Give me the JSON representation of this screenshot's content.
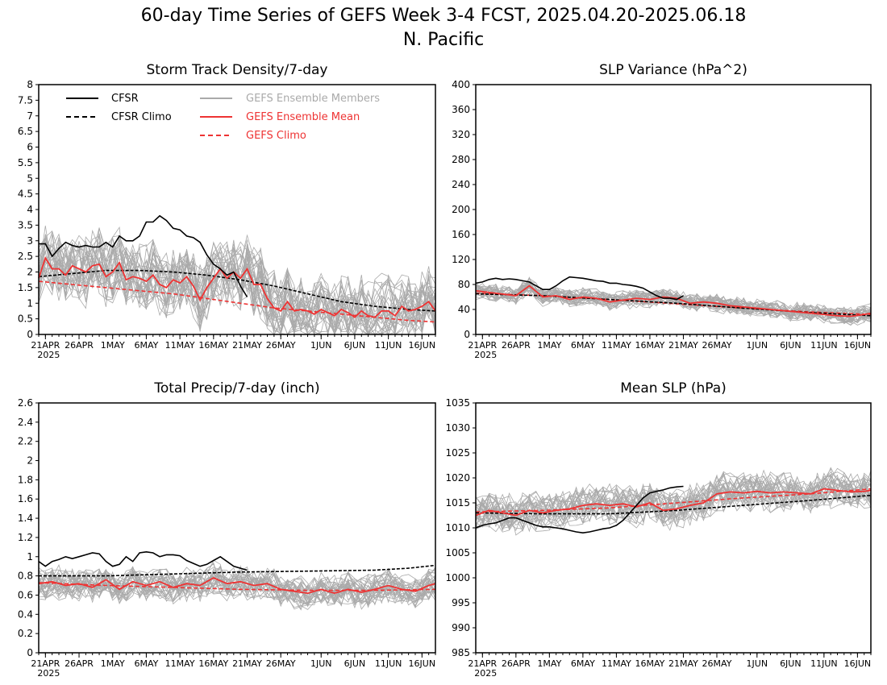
{
  "title": "60-day Time Series of GEFS Week 3-4 FCST, 2025.04.20-2025.06.18",
  "subtitle": "N. Pacific",
  "colors": {
    "cfsr": "#000000",
    "members": "#aaaaaa",
    "mean": "#ee3333",
    "gefs_climo": "#ee3333"
  },
  "legend": {
    "cfsr": "CFSR",
    "cfsr_climo": "CFSR Climo",
    "members": "GEFS Ensemble Members",
    "mean": "GEFS Ensemble Mean",
    "gefs_climo": "GEFS Climo"
  },
  "x_axis": {
    "ticks": [
      {
        "day": 1,
        "label": "21APR"
      },
      {
        "day": 6,
        "label": "26APR"
      },
      {
        "day": 11,
        "label": "1MAY"
      },
      {
        "day": 16,
        "label": "6MAY"
      },
      {
        "day": 21,
        "label": "11MAY"
      },
      {
        "day": 26,
        "label": "16MAY"
      },
      {
        "day": 31,
        "label": "21MAY"
      },
      {
        "day": 36,
        "label": "26MAY"
      },
      {
        "day": 42,
        "label": "1JUN"
      },
      {
        "day": 47,
        "label": "6JUN"
      },
      {
        "day": 52,
        "label": "11JUN"
      },
      {
        "day": 57,
        "label": "16JUN"
      }
    ],
    "year_label": "2025"
  },
  "chart_data": [
    {
      "type": "line",
      "title": "Storm Track Density/7-day",
      "ylim": [
        0,
        8
      ],
      "yticks": [
        "0",
        "0.5",
        "1",
        "1.5",
        "2",
        "2.5",
        "3",
        "3.5",
        "4",
        "4.5",
        "5",
        "5.5",
        "6",
        "6.5",
        "7",
        "7.5",
        "8"
      ],
      "x_start_date": "2025-04-20",
      "x_range_days": [
        0,
        59
      ],
      "members": {
        "count": 30,
        "spread": 0.9,
        "shape": "mean_plus_noise"
      },
      "series": [
        {
          "name": "CFSR",
          "style": "solid",
          "color": "#000000",
          "x": [
            0,
            1,
            2,
            3,
            4,
            5,
            6,
            7,
            8,
            9,
            10,
            11,
            12,
            13,
            14,
            15,
            16,
            17,
            18,
            19,
            20,
            21,
            22,
            23,
            24,
            25,
            26,
            27,
            28,
            29,
            30,
            31
          ],
          "y": [
            2.9,
            2.9,
            2.5,
            2.75,
            2.95,
            2.85,
            2.8,
            2.85,
            2.8,
            2.8,
            2.95,
            2.8,
            3.15,
            3.0,
            3.0,
            3.15,
            3.6,
            3.6,
            3.8,
            3.65,
            3.4,
            3.35,
            3.15,
            3.1,
            2.95,
            2.55,
            2.25,
            2.1,
            1.9,
            2.0,
            1.55,
            1.2
          ]
        },
        {
          "name": "CFSR Climo",
          "style": "dashed",
          "color": "#000000",
          "x": [
            0,
            10,
            15,
            20,
            25,
            30,
            35,
            40,
            45,
            50,
            55,
            59
          ],
          "y": [
            1.85,
            2.05,
            2.05,
            2.0,
            1.9,
            1.75,
            1.55,
            1.3,
            1.05,
            0.9,
            0.8,
            0.75
          ]
        },
        {
          "name": "GEFS Ensemble Mean",
          "style": "solid",
          "color": "#ee3333",
          "x": [
            0,
            1,
            2,
            3,
            4,
            5,
            6,
            7,
            8,
            9,
            10,
            11,
            12,
            13,
            14,
            15,
            16,
            17,
            18,
            19,
            20,
            21,
            22,
            23,
            24,
            25,
            26,
            27,
            28,
            29,
            30,
            31,
            32,
            33,
            34,
            35,
            36,
            37,
            38,
            39,
            40,
            41,
            42,
            43,
            44,
            45,
            46,
            47,
            48,
            49,
            50,
            51,
            52,
            53,
            54,
            55,
            56,
            57,
            58,
            59
          ],
          "y": [
            1.8,
            2.45,
            2.1,
            2.1,
            1.9,
            2.2,
            2.1,
            2.0,
            2.2,
            2.25,
            1.85,
            2.0,
            2.3,
            1.75,
            1.85,
            1.8,
            1.7,
            1.9,
            1.6,
            1.5,
            1.75,
            1.65,
            1.85,
            1.55,
            1.1,
            1.5,
            1.8,
            2.1,
            1.8,
            2.0,
            1.8,
            2.1,
            1.6,
            1.6,
            1.15,
            0.85,
            0.75,
            1.05,
            0.75,
            0.8,
            0.75,
            0.65,
            0.8,
            0.7,
            0.6,
            0.8,
            0.7,
            0.55,
            0.75,
            0.6,
            0.55,
            0.75,
            0.75,
            0.6,
            0.9,
            0.75,
            0.8,
            0.9,
            1.05,
            0.75
          ]
        },
        {
          "name": "GEFS Climo",
          "style": "dashed",
          "color": "#ee3333",
          "x": [
            0,
            5,
            10,
            15,
            20,
            25,
            30,
            35,
            40,
            45,
            50,
            55,
            59
          ],
          "y": [
            1.7,
            1.6,
            1.5,
            1.4,
            1.3,
            1.15,
            1.0,
            0.85,
            0.75,
            0.65,
            0.55,
            0.45,
            0.4
          ]
        }
      ]
    },
    {
      "type": "line",
      "title": "SLP Variance (hPa^2)",
      "ylim": [
        0,
        400
      ],
      "yticks": [
        "0",
        "40",
        "80",
        "120",
        "160",
        "200",
        "240",
        "280",
        "320",
        "360",
        "400"
      ],
      "x_start_date": "2025-04-20",
      "x_range_days": [
        0,
        59
      ],
      "members": {
        "count": 30,
        "spread": 12,
        "shape": "mean_plus_noise"
      },
      "series": [
        {
          "name": "CFSR",
          "style": "solid",
          "color": "#000000",
          "x": [
            0,
            1,
            2,
            3,
            4,
            5,
            6,
            7,
            8,
            9,
            10,
            11,
            12,
            13,
            14,
            15,
            16,
            17,
            18,
            19,
            20,
            21,
            22,
            23,
            24,
            25,
            26,
            27,
            28,
            29,
            30,
            31
          ],
          "y": [
            82,
            84,
            88,
            90,
            88,
            89,
            88,
            86,
            84,
            78,
            72,
            72,
            78,
            86,
            92,
            91,
            90,
            88,
            86,
            85,
            82,
            82,
            80,
            79,
            77,
            74,
            68,
            62,
            58,
            58,
            56,
            62
          ]
        },
        {
          "name": "CFSR Climo",
          "style": "dashed",
          "color": "#000000",
          "x": [
            0,
            10,
            20,
            30,
            40,
            50,
            59
          ],
          "y": [
            65,
            62,
            56,
            50,
            42,
            35,
            30
          ]
        },
        {
          "name": "GEFS Ensemble Mean",
          "style": "solid",
          "color": "#ee3333",
          "x": [
            0,
            3,
            6,
            8,
            10,
            12,
            14,
            16,
            18,
            20,
            22,
            24,
            26,
            28,
            30,
            32,
            34,
            36,
            38,
            40,
            42,
            44,
            46,
            48,
            50,
            52,
            54,
            56,
            58,
            59
          ],
          "y": [
            70,
            66,
            62,
            78,
            60,
            62,
            56,
            60,
            58,
            52,
            55,
            58,
            56,
            60,
            58,
            50,
            52,
            50,
            46,
            44,
            42,
            40,
            38,
            36,
            34,
            32,
            30,
            29,
            32,
            34
          ]
        },
        {
          "name": "GEFS Climo",
          "style": "dashed",
          "color": "#ee3333",
          "x": [
            0,
            10,
            20,
            30,
            40,
            50,
            59
          ],
          "y": [
            66,
            62,
            56,
            49,
            42,
            36,
            32
          ]
        }
      ]
    },
    {
      "type": "line",
      "title": "Total Precip/7-day (inch)",
      "ylim": [
        0,
        2.6
      ],
      "yticks": [
        "0",
        "0.2",
        "0.4",
        "0.6",
        "0.8",
        "1",
        "1.2",
        "1.4",
        "1.6",
        "1.8",
        "2",
        "2.2",
        "2.4",
        "2.6"
      ],
      "x_start_date": "2025-04-20",
      "x_range_days": [
        0,
        59
      ],
      "members": {
        "count": 30,
        "spread": 0.14,
        "shape": "mean_plus_noise"
      },
      "series": [
        {
          "name": "CFSR",
          "style": "solid",
          "color": "#000000",
          "x": [
            0,
            1,
            2,
            3,
            4,
            5,
            6,
            7,
            8,
            9,
            10,
            11,
            12,
            13,
            14,
            15,
            16,
            17,
            18,
            19,
            20,
            21,
            22,
            23,
            24,
            25,
            26,
            27,
            28,
            29,
            30,
            31
          ],
          "y": [
            0.95,
            0.9,
            0.95,
            0.97,
            1.0,
            0.98,
            1.0,
            1.02,
            1.04,
            1.03,
            0.95,
            0.9,
            0.92,
            1.0,
            0.95,
            1.04,
            1.05,
            1.04,
            1.0,
            1.02,
            1.02,
            1.01,
            0.96,
            0.93,
            0.9,
            0.92,
            0.96,
            1.0,
            0.95,
            0.9,
            0.88,
            0.86
          ]
        },
        {
          "name": "CFSR Climo",
          "style": "dashed",
          "color": "#000000",
          "x": [
            0,
            10,
            20,
            30,
            40,
            50,
            55,
            59
          ],
          "y": [
            0.8,
            0.8,
            0.82,
            0.84,
            0.85,
            0.86,
            0.88,
            0.91
          ]
        },
        {
          "name": "GEFS Ensemble Mean",
          "style": "solid",
          "color": "#ee3333",
          "x": [
            0,
            2,
            4,
            6,
            8,
            10,
            12,
            14,
            16,
            18,
            20,
            22,
            24,
            26,
            28,
            30,
            32,
            34,
            36,
            38,
            40,
            42,
            44,
            46,
            48,
            50,
            52,
            54,
            56,
            58,
            59
          ],
          "y": [
            0.72,
            0.74,
            0.7,
            0.72,
            0.68,
            0.76,
            0.66,
            0.74,
            0.7,
            0.74,
            0.68,
            0.72,
            0.7,
            0.78,
            0.72,
            0.74,
            0.7,
            0.72,
            0.66,
            0.64,
            0.62,
            0.66,
            0.62,
            0.66,
            0.63,
            0.66,
            0.7,
            0.66,
            0.64,
            0.7,
            0.72
          ]
        },
        {
          "name": "GEFS Climo",
          "style": "dashed",
          "color": "#ee3333",
          "x": [
            0,
            10,
            20,
            30,
            40,
            50,
            59
          ],
          "y": [
            0.73,
            0.7,
            0.68,
            0.66,
            0.65,
            0.65,
            0.66
          ]
        }
      ]
    },
    {
      "type": "line",
      "title": "Mean SLP (hPa)",
      "ylim": [
        985,
        1035
      ],
      "yticks": [
        "985",
        "990",
        "995",
        "1000",
        "1005",
        "1010",
        "1015",
        "1020",
        "1025",
        "1030",
        "1035"
      ],
      "x_start_date": "2025-04-20",
      "x_range_days": [
        0,
        59
      ],
      "members": {
        "count": 30,
        "spread": 3.2,
        "shape": "mean_plus_noise"
      },
      "series": [
        {
          "name": "CFSR",
          "style": "solid",
          "color": "#000000",
          "x": [
            0,
            1,
            2,
            3,
            4,
            5,
            6,
            7,
            8,
            9,
            10,
            11,
            12,
            13,
            14,
            15,
            16,
            17,
            18,
            19,
            20,
            21,
            22,
            23,
            24,
            25,
            26,
            27,
            28,
            29,
            30,
            31
          ],
          "y": [
            1010,
            1010.5,
            1010.8,
            1011,
            1011.5,
            1012,
            1012,
            1011.5,
            1011,
            1010.5,
            1010.2,
            1010.2,
            1010,
            1009.8,
            1009.5,
            1009.2,
            1009,
            1009.2,
            1009.5,
            1009.8,
            1010,
            1010.5,
            1011.5,
            1013,
            1014.5,
            1016,
            1017,
            1017.3,
            1017.6,
            1018,
            1018.2,
            1018.3
          ]
        },
        {
          "name": "CFSR Climo",
          "style": "dashed",
          "color": "#000000",
          "x": [
            0,
            10,
            20,
            30,
            40,
            50,
            59
          ],
          "y": [
            1013,
            1012.8,
            1012.8,
            1013.5,
            1014.5,
            1015.5,
            1016.5
          ]
        },
        {
          "name": "GEFS Ensemble Mean",
          "style": "solid",
          "color": "#ee3333",
          "x": [
            0,
            2,
            4,
            6,
            8,
            10,
            12,
            14,
            16,
            18,
            20,
            22,
            24,
            26,
            28,
            30,
            32,
            34,
            36,
            38,
            40,
            42,
            44,
            46,
            48,
            50,
            52,
            54,
            56,
            58,
            59
          ],
          "y": [
            1012.5,
            1013.5,
            1013,
            1012.5,
            1013.5,
            1013,
            1013.5,
            1013.8,
            1014.5,
            1014.8,
            1014.5,
            1014.8,
            1014.2,
            1015,
            1013.5,
            1013.8,
            1014.5,
            1015,
            1016.8,
            1017.2,
            1017,
            1017.3,
            1017,
            1017.2,
            1017,
            1016.8,
            1017.8,
            1017.5,
            1017.2,
            1017.3,
            1017.5
          ]
        },
        {
          "name": "GEFS Climo",
          "style": "dashed",
          "color": "#ee3333",
          "x": [
            0,
            10,
            20,
            30,
            40,
            50,
            59
          ],
          "y": [
            1013.2,
            1013.5,
            1014,
            1015,
            1016,
            1016.8,
            1017.8
          ]
        }
      ]
    }
  ]
}
